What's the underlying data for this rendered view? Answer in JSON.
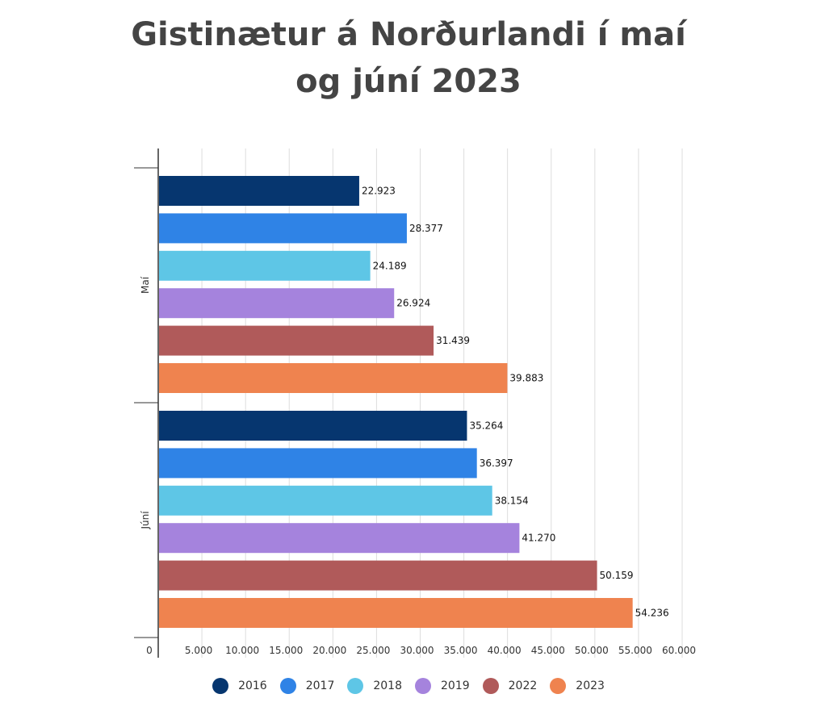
{
  "chart_data": {
    "type": "bar",
    "orientation": "horizontal",
    "title": "Gistinætur á Norðurlandi í maí og júní 2023",
    "title_lines": [
      "Gistinætur á Norðurlandi í maí",
      "og júní 2023"
    ],
    "categories": [
      "Maí",
      "Júní"
    ],
    "series": [
      {
        "name": "2016",
        "color": "#06366f",
        "values": [
          22923,
          35264
        ],
        "labels": [
          "22.923",
          "35.264"
        ]
      },
      {
        "name": "2017",
        "color": "#2f83e6",
        "values": [
          28377,
          36397
        ],
        "labels": [
          "28.377",
          "36.397"
        ]
      },
      {
        "name": "2018",
        "color": "#5ec6e6",
        "values": [
          24189,
          38154
        ],
        "labels": [
          "24.189",
          "38.154"
        ]
      },
      {
        "name": "2019",
        "color": "#a583dd",
        "values": [
          26924,
          41270
        ],
        "labels": [
          "26.924",
          "41.270"
        ]
      },
      {
        "name": "2022",
        "color": "#b05a5a",
        "values": [
          31439,
          50159
        ],
        "labels": [
          "31.439",
          "50.159"
        ]
      },
      {
        "name": "2023",
        "color": "#ef834f",
        "values": [
          39883,
          54236
        ],
        "labels": [
          "39.883",
          "54.236"
        ]
      }
    ],
    "xlim": [
      0,
      60000
    ],
    "x_ticks": [
      0,
      5000,
      10000,
      15000,
      20000,
      25000,
      30000,
      35000,
      40000,
      45000,
      50000,
      55000,
      60000
    ],
    "x_tick_labels": [
      "0",
      "5.000",
      "10.000",
      "15.000",
      "20.000",
      "25.000",
      "30.000",
      "35.000",
      "40.000",
      "45.000",
      "50.000",
      "55.000",
      "60.000"
    ],
    "grid": true,
    "legend_position": "bottom"
  }
}
